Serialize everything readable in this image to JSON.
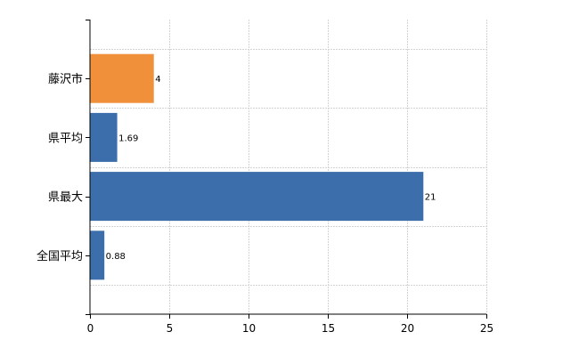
{
  "chart_data": {
    "type": "bar",
    "orientation": "horizontal",
    "categories": [
      "藤沢市",
      "県平均",
      "県最大",
      "全国平均"
    ],
    "values": [
      4,
      1.69,
      21,
      0.88
    ],
    "data_labels": [
      "4",
      "1.69",
      "21",
      "0.88"
    ],
    "bar_colors": [
      "#f0903a",
      "#3b6eab",
      "#3b6eab",
      "#3b6eab"
    ],
    "title": "",
    "xlabel": "",
    "ylabel": "",
    "xlim": [
      0,
      25
    ],
    "xticks": [
      0,
      5,
      10,
      15,
      20,
      25
    ],
    "grid": true,
    "legend": "none"
  }
}
